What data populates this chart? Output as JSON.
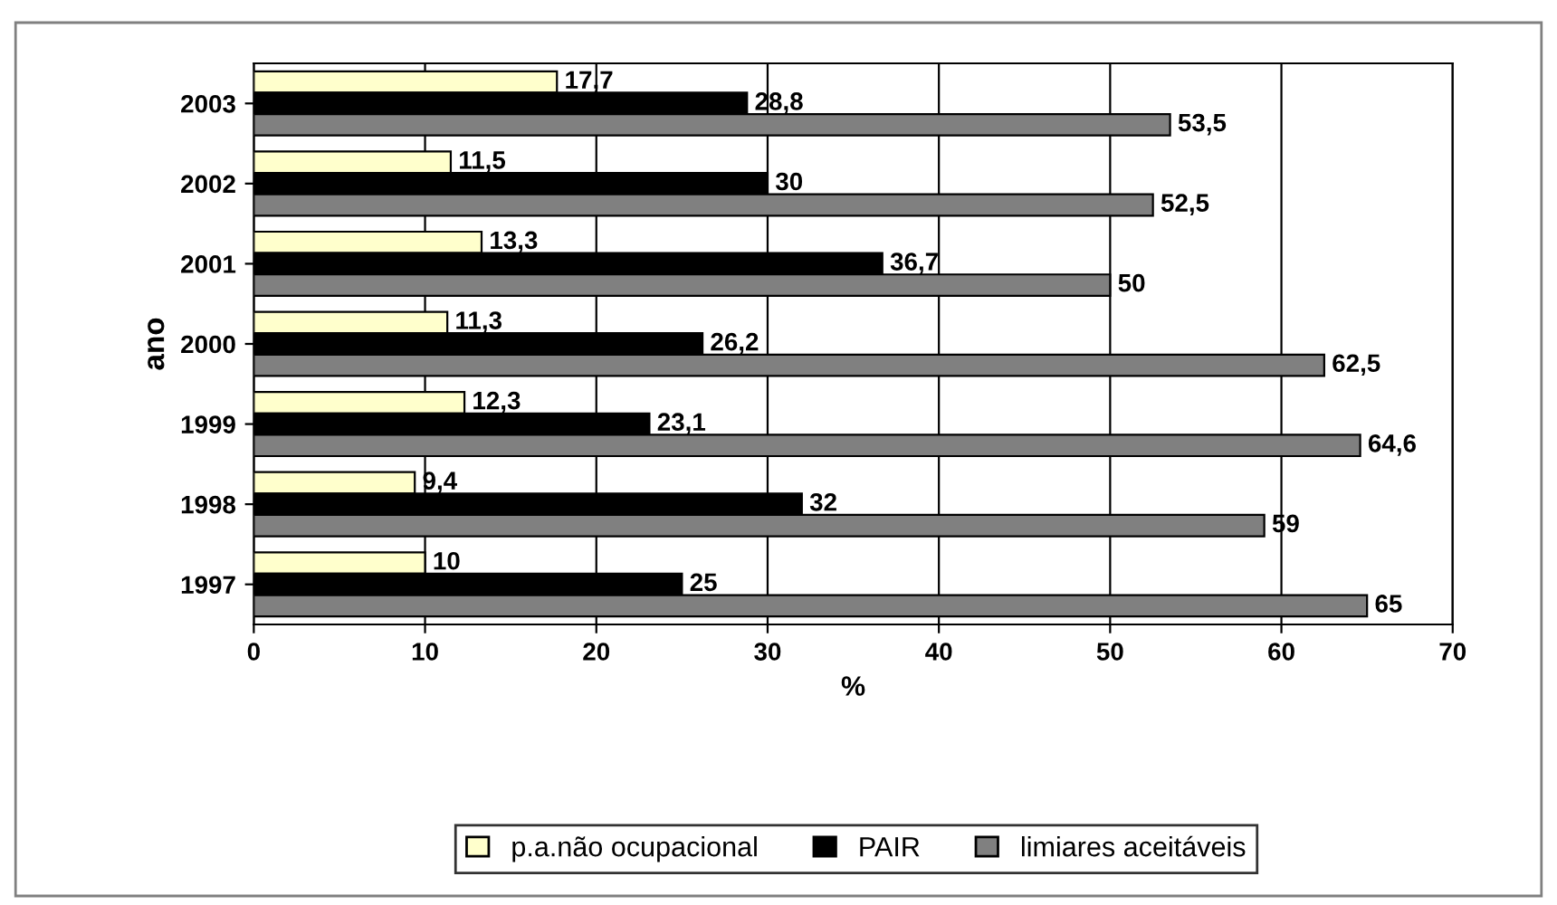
{
  "chart_data": {
    "type": "bar",
    "orientation": "horizontal",
    "xlabel": "%",
    "ylabel": "ano",
    "categories": [
      "2003",
      "2002",
      "2001",
      "2000",
      "1999",
      "1998",
      "1997"
    ],
    "series": [
      {
        "name": "p.a.não ocupacional",
        "color": "#ffffcc",
        "values": [
          17.7,
          11.5,
          13.3,
          11.3,
          12.3,
          9.4,
          10
        ],
        "value_labels": [
          "17,7",
          "11,5",
          "13,3",
          "11,3",
          "12,3",
          "9,4",
          "10"
        ]
      },
      {
        "name": "PAIR",
        "color": "#000000",
        "values": [
          28.8,
          30,
          36.7,
          26.2,
          23.1,
          32,
          25
        ],
        "value_labels": [
          "28,8",
          "30",
          "36,7",
          "26,2",
          "23,1",
          "32",
          "25"
        ]
      },
      {
        "name": "limiares aceitáveis",
        "color": "#808080",
        "values": [
          53.5,
          52.5,
          50,
          62.5,
          64.6,
          59,
          65
        ],
        "value_labels": [
          "53,5",
          "52,5",
          "50",
          "62,5",
          "64,6",
          "59",
          "65"
        ]
      }
    ],
    "xlim": [
      0,
      70
    ],
    "xticks": [
      0,
      10,
      20,
      30,
      40,
      50,
      60,
      70
    ],
    "grid": "x",
    "legend": "bottom"
  }
}
